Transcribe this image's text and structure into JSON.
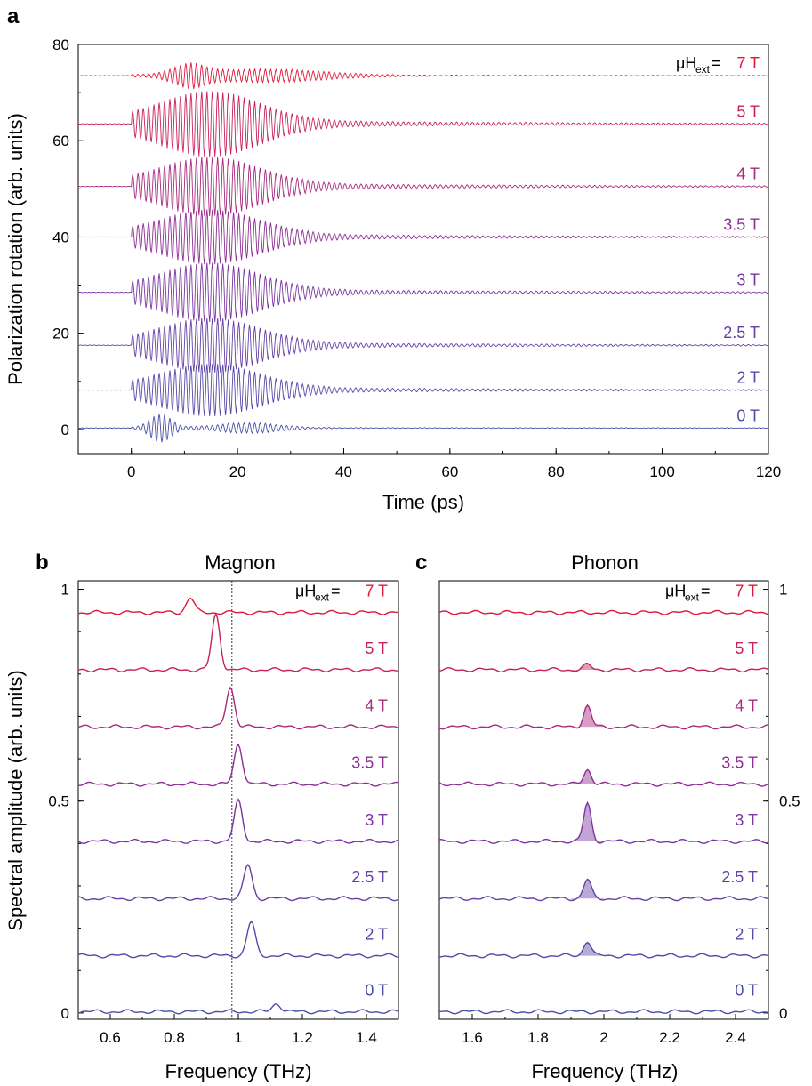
{
  "chart_data": [
    {
      "panel": "a",
      "type": "line",
      "xlabel": "Time (ps)",
      "ylabel": "Polarization rotation (arb. units)",
      "xlim": [
        -10,
        120
      ],
      "ylim": [
        -5,
        80
      ],
      "xticks": [
        "0",
        "20",
        "40",
        "60",
        "80",
        "100",
        "120"
      ],
      "yticks": [
        "0",
        "20",
        "40",
        "60",
        "80"
      ],
      "legend_prefix": "μH",
      "legend_sub": "ext",
      "legend_eq": "=",
      "series": [
        {
          "label": "0 T",
          "color": "#4a4ea8",
          "offset": 0.3,
          "amp": 2.8,
          "shape": "double"
        },
        {
          "label": "2 T",
          "color": "#5548a8",
          "offset": 8.2,
          "amp": 4.8,
          "shape": "broad"
        },
        {
          "label": "2.5 T",
          "color": "#6540a6",
          "offset": 17.5,
          "amp": 5.0,
          "shape": "broad"
        },
        {
          "label": "3 T",
          "color": "#7a36a0",
          "offset": 28.5,
          "amp": 5.4,
          "shape": "broad"
        },
        {
          "label": "3.5 T",
          "color": "#8e2d95",
          "offset": 40.0,
          "amp": 5.0,
          "shape": "broad"
        },
        {
          "label": "4 T",
          "color": "#a92880",
          "offset": 50.5,
          "amp": 5.4,
          "shape": "broad"
        },
        {
          "label": "5 T",
          "color": "#c8205e",
          "offset": 63.5,
          "amp": 6.0,
          "shape": "broad"
        },
        {
          "label": "7 T",
          "color": "#e0163a",
          "offset": 73.5,
          "amp": 2.2,
          "shape": "narrow"
        }
      ]
    },
    {
      "panel": "b",
      "title": "Magnon",
      "type": "line",
      "xlabel": "Frequency (THz)",
      "ylabel": "Spectral amplitude (arb. units)",
      "xlim": [
        0.5,
        1.5
      ],
      "ylim": [
        -0.015,
        1.02
      ],
      "xticks": [
        "0.6",
        "0.8",
        "1",
        "1.2",
        "1.4"
      ],
      "yticks": [
        "0",
        "0.5",
        "1"
      ],
      "dashed_line_x": 0.98,
      "series": [
        {
          "label": "0 T",
          "color": "#4a4ea8",
          "baseline": 0.003,
          "peak_x": 1.12,
          "peak_h": 0.02
        },
        {
          "label": "2 T",
          "color": "#5548a8",
          "baseline": 0.135,
          "peak_x": 1.04,
          "peak_h": 0.08
        },
        {
          "label": "2.5 T",
          "color": "#6540a6",
          "baseline": 0.27,
          "peak_x": 1.03,
          "peak_h": 0.08
        },
        {
          "label": "3 T",
          "color": "#7a36a0",
          "baseline": 0.405,
          "peak_x": 1.0,
          "peak_h": 0.095
        },
        {
          "label": "3.5 T",
          "color": "#8e2d95",
          "baseline": 0.54,
          "peak_x": 1.0,
          "peak_h": 0.095
        },
        {
          "label": "4 T",
          "color": "#a92880",
          "baseline": 0.675,
          "peak_x": 0.975,
          "peak_h": 0.095
        },
        {
          "label": "5 T",
          "color": "#c8205e",
          "baseline": 0.81,
          "peak_x": 0.93,
          "peak_h": 0.13
        },
        {
          "label": "7 T",
          "color": "#e0163a",
          "baseline": 0.945,
          "peak_x": 0.85,
          "peak_h": 0.035
        }
      ]
    },
    {
      "panel": "c",
      "title": "Phonon",
      "type": "area",
      "xlabel": "Frequency (THz)",
      "xlim": [
        1.5,
        2.5
      ],
      "ylim": [
        -0.015,
        1.02
      ],
      "xticks": [
        "1.6",
        "1.8",
        "2",
        "2.2",
        "2.4"
      ],
      "yticks": [
        "0",
        "0.5",
        "1"
      ],
      "series": [
        {
          "label": "0 T",
          "color": "#4a4ea8",
          "baseline": 0.003,
          "peak_x": 1.95,
          "peak_h": 0.0
        },
        {
          "label": "2 T",
          "color": "#5548a8",
          "baseline": 0.135,
          "peak_x": 1.95,
          "peak_h": 0.035
        },
        {
          "label": "2.5 T",
          "color": "#6540a6",
          "baseline": 0.27,
          "peak_x": 1.95,
          "peak_h": 0.045
        },
        {
          "label": "3 T",
          "color": "#7a36a0",
          "baseline": 0.405,
          "peak_x": 1.95,
          "peak_h": 0.09
        },
        {
          "label": "3.5 T",
          "color": "#8e2d95",
          "baseline": 0.54,
          "peak_x": 1.95,
          "peak_h": 0.035
        },
        {
          "label": "4 T",
          "color": "#a92880",
          "baseline": 0.675,
          "peak_x": 1.95,
          "peak_h": 0.05
        },
        {
          "label": "5 T",
          "color": "#c8205e",
          "baseline": 0.81,
          "peak_x": 1.95,
          "peak_h": 0.012
        },
        {
          "label": "7 T",
          "color": "#e0163a",
          "baseline": 0.945,
          "peak_x": 1.95,
          "peak_h": 0.0
        }
      ]
    }
  ],
  "labels": {
    "panel_a": "a",
    "panel_b": "b",
    "panel_c": "c"
  }
}
